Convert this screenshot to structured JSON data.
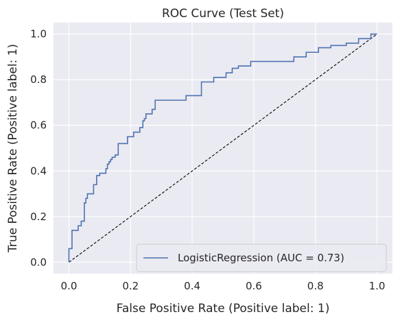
{
  "chart_data": {
    "type": "line",
    "title": "ROC Curve (Test Set)",
    "xlabel": "False Positive Rate (Positive label: 1)",
    "ylabel": "True Positive Rate (Positive label: 1)",
    "xlim": [
      -0.05,
      1.05
    ],
    "ylim": [
      -0.05,
      1.05
    ],
    "xticks": [
      0.0,
      0.2,
      0.4,
      0.6,
      0.8,
      1.0
    ],
    "yticks": [
      0.0,
      0.2,
      0.4,
      0.6,
      0.8,
      1.0
    ],
    "xtick_labels": [
      "0.0",
      "0.2",
      "0.4",
      "0.6",
      "0.8",
      "1.0"
    ],
    "ytick_labels": [
      "0.0",
      "0.2",
      "0.4",
      "0.6",
      "0.8",
      "1.0"
    ],
    "grid": true,
    "legend_position": "lower right",
    "colors": {
      "background": "#eaeaf2",
      "grid": "#ffffff",
      "roc_line": "#4c72b0",
      "chance_line": "#000000"
    },
    "series": [
      {
        "name": "LogisticRegression (AUC = 0.73)",
        "style": "step",
        "x": [
          0.0,
          0.0,
          0.01,
          0.01,
          0.03,
          0.03,
          0.04,
          0.04,
          0.05,
          0.05,
          0.055,
          0.055,
          0.06,
          0.06,
          0.08,
          0.08,
          0.09,
          0.09,
          0.1,
          0.1,
          0.12,
          0.12,
          0.125,
          0.125,
          0.13,
          0.13,
          0.135,
          0.135,
          0.14,
          0.14,
          0.15,
          0.15,
          0.16,
          0.16,
          0.19,
          0.19,
          0.21,
          0.21,
          0.23,
          0.23,
          0.24,
          0.24,
          0.245,
          0.245,
          0.25,
          0.25,
          0.27,
          0.27,
          0.28,
          0.28,
          0.38,
          0.38,
          0.43,
          0.43,
          0.47,
          0.47,
          0.51,
          0.51,
          0.53,
          0.53,
          0.55,
          0.55,
          0.59,
          0.59,
          0.73,
          0.73,
          0.77,
          0.77,
          0.81,
          0.81,
          0.85,
          0.85,
          0.9,
          0.9,
          0.94,
          0.94,
          0.98,
          0.98,
          1.0
        ],
        "y": [
          0.0,
          0.06,
          0.06,
          0.14,
          0.14,
          0.16,
          0.16,
          0.18,
          0.18,
          0.26,
          0.26,
          0.28,
          0.28,
          0.3,
          0.3,
          0.34,
          0.34,
          0.38,
          0.38,
          0.39,
          0.39,
          0.41,
          0.41,
          0.43,
          0.43,
          0.44,
          0.44,
          0.45,
          0.45,
          0.46,
          0.46,
          0.47,
          0.47,
          0.52,
          0.52,
          0.55,
          0.55,
          0.57,
          0.57,
          0.59,
          0.59,
          0.62,
          0.62,
          0.63,
          0.63,
          0.65,
          0.65,
          0.67,
          0.67,
          0.71,
          0.71,
          0.73,
          0.73,
          0.79,
          0.79,
          0.81,
          0.81,
          0.83,
          0.83,
          0.85,
          0.85,
          0.86,
          0.86,
          0.88,
          0.88,
          0.9,
          0.9,
          0.92,
          0.92,
          0.94,
          0.94,
          0.95,
          0.95,
          0.96,
          0.96,
          0.98,
          0.98,
          1.0,
          1.0
        ]
      },
      {
        "style": "dashed",
        "x": [
          0.0,
          1.0
        ],
        "y": [
          0.0,
          1.0
        ]
      }
    ]
  }
}
